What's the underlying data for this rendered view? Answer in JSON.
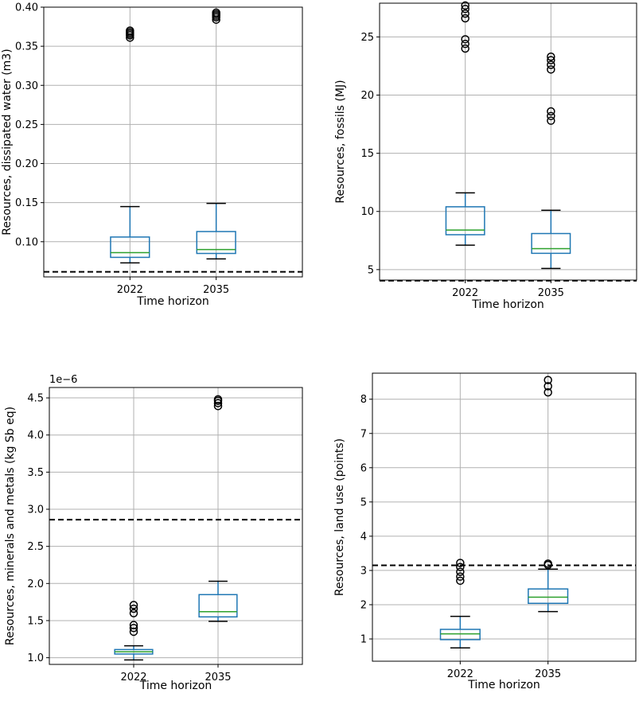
{
  "chart_data": [
    {
      "type": "box",
      "ylabel": "Resources, dissipated water (m3)",
      "xlabel": "Time horizon",
      "categories": [
        "2022",
        "2035"
      ],
      "ylim": [
        0.055,
        0.4
      ],
      "yticks": [
        0.1,
        0.15,
        0.2,
        0.25,
        0.3,
        0.35,
        0.4
      ],
      "ytick_labels": [
        "0.10",
        "0.15",
        "0.20",
        "0.25",
        "0.30",
        "0.35",
        "0.40"
      ],
      "offset_text": "",
      "reference_line": 0.0615,
      "boxes": [
        {
          "whislo": 0.073,
          "q1": 0.08,
          "med": 0.086,
          "q3": 0.106,
          "whishi": 0.145,
          "fliers": [
            0.361,
            0.364,
            0.366,
            0.368,
            0.37
          ]
        },
        {
          "whislo": 0.078,
          "q1": 0.085,
          "med": 0.09,
          "q3": 0.113,
          "whishi": 0.149,
          "fliers": [
            0.384,
            0.387,
            0.389,
            0.391,
            0.393
          ]
        }
      ],
      "grid": true
    },
    {
      "type": "box",
      "ylabel": "Resources, fossils (MJ)",
      "xlabel": "Time horizon",
      "categories": [
        "2022",
        "2035"
      ],
      "ylim": [
        4.1,
        27.9
      ],
      "yticks": [
        5,
        10,
        15,
        20,
        25
      ],
      "ytick_labels": [
        "5",
        "10",
        "15",
        "20",
        "25"
      ],
      "offset_text": "",
      "reference_line": 4.05,
      "boxes": [
        {
          "whislo": 7.1,
          "q1": 8.0,
          "med": 8.4,
          "q3": 10.4,
          "whishi": 11.6,
          "fliers": [
            24.0,
            24.4,
            24.8,
            26.6,
            27.0,
            27.4,
            27.7
          ]
        },
        {
          "whislo": 5.1,
          "q1": 6.4,
          "med": 6.8,
          "q3": 8.1,
          "whishi": 10.1,
          "fliers": [
            17.8,
            18.2,
            18.6,
            22.2,
            22.6,
            23.0,
            23.3
          ]
        }
      ],
      "grid": true
    },
    {
      "type": "box",
      "ylabel": "Resources, minerals and metals (kg Sb eq)",
      "xlabel": "Time horizon",
      "categories": [
        "2022",
        "2035"
      ],
      "ylim": [
        0.91,
        4.64
      ],
      "yticks": [
        1.0,
        1.5,
        2.0,
        2.5,
        3.0,
        3.5,
        4.0,
        4.5
      ],
      "ytick_labels": [
        "1.0",
        "1.5",
        "2.0",
        "2.5",
        "3.0",
        "3.5",
        "4.0",
        "4.5"
      ],
      "offset_text": "1e−6",
      "reference_line": 2.86,
      "boxes": [
        {
          "whislo": 0.97,
          "q1": 1.05,
          "med": 1.08,
          "q3": 1.11,
          "whishi": 1.16,
          "fliers": [
            1.35,
            1.4,
            1.44,
            1.6,
            1.66,
            1.71
          ]
        },
        {
          "whislo": 1.49,
          "q1": 1.55,
          "med": 1.62,
          "q3": 1.85,
          "whishi": 2.03,
          "fliers": [
            4.39,
            4.43,
            4.46,
            4.48
          ]
        }
      ],
      "grid": true
    },
    {
      "type": "box",
      "ylabel": "Resources, land use (points)",
      "xlabel": "Time horizon",
      "categories": [
        "2022",
        "2035"
      ],
      "ylim": [
        0.35,
        8.76
      ],
      "yticks": [
        1,
        2,
        3,
        4,
        5,
        6,
        7,
        8
      ],
      "ytick_labels": [
        "1",
        "2",
        "3",
        "4",
        "5",
        "6",
        "7",
        "8"
      ],
      "offset_text": "",
      "reference_line": 3.15,
      "boxes": [
        {
          "whislo": 0.74,
          "q1": 0.98,
          "med": 1.15,
          "q3": 1.28,
          "whishi": 1.66,
          "fliers": [
            2.7,
            2.82,
            2.96,
            3.1,
            3.22
          ]
        },
        {
          "whislo": 1.8,
          "q1": 2.04,
          "med": 2.22,
          "q3": 2.46,
          "whishi": 3.04,
          "fliers": [
            3.16,
            3.2,
            8.2,
            8.38,
            8.56
          ]
        }
      ],
      "grid": true
    }
  ]
}
